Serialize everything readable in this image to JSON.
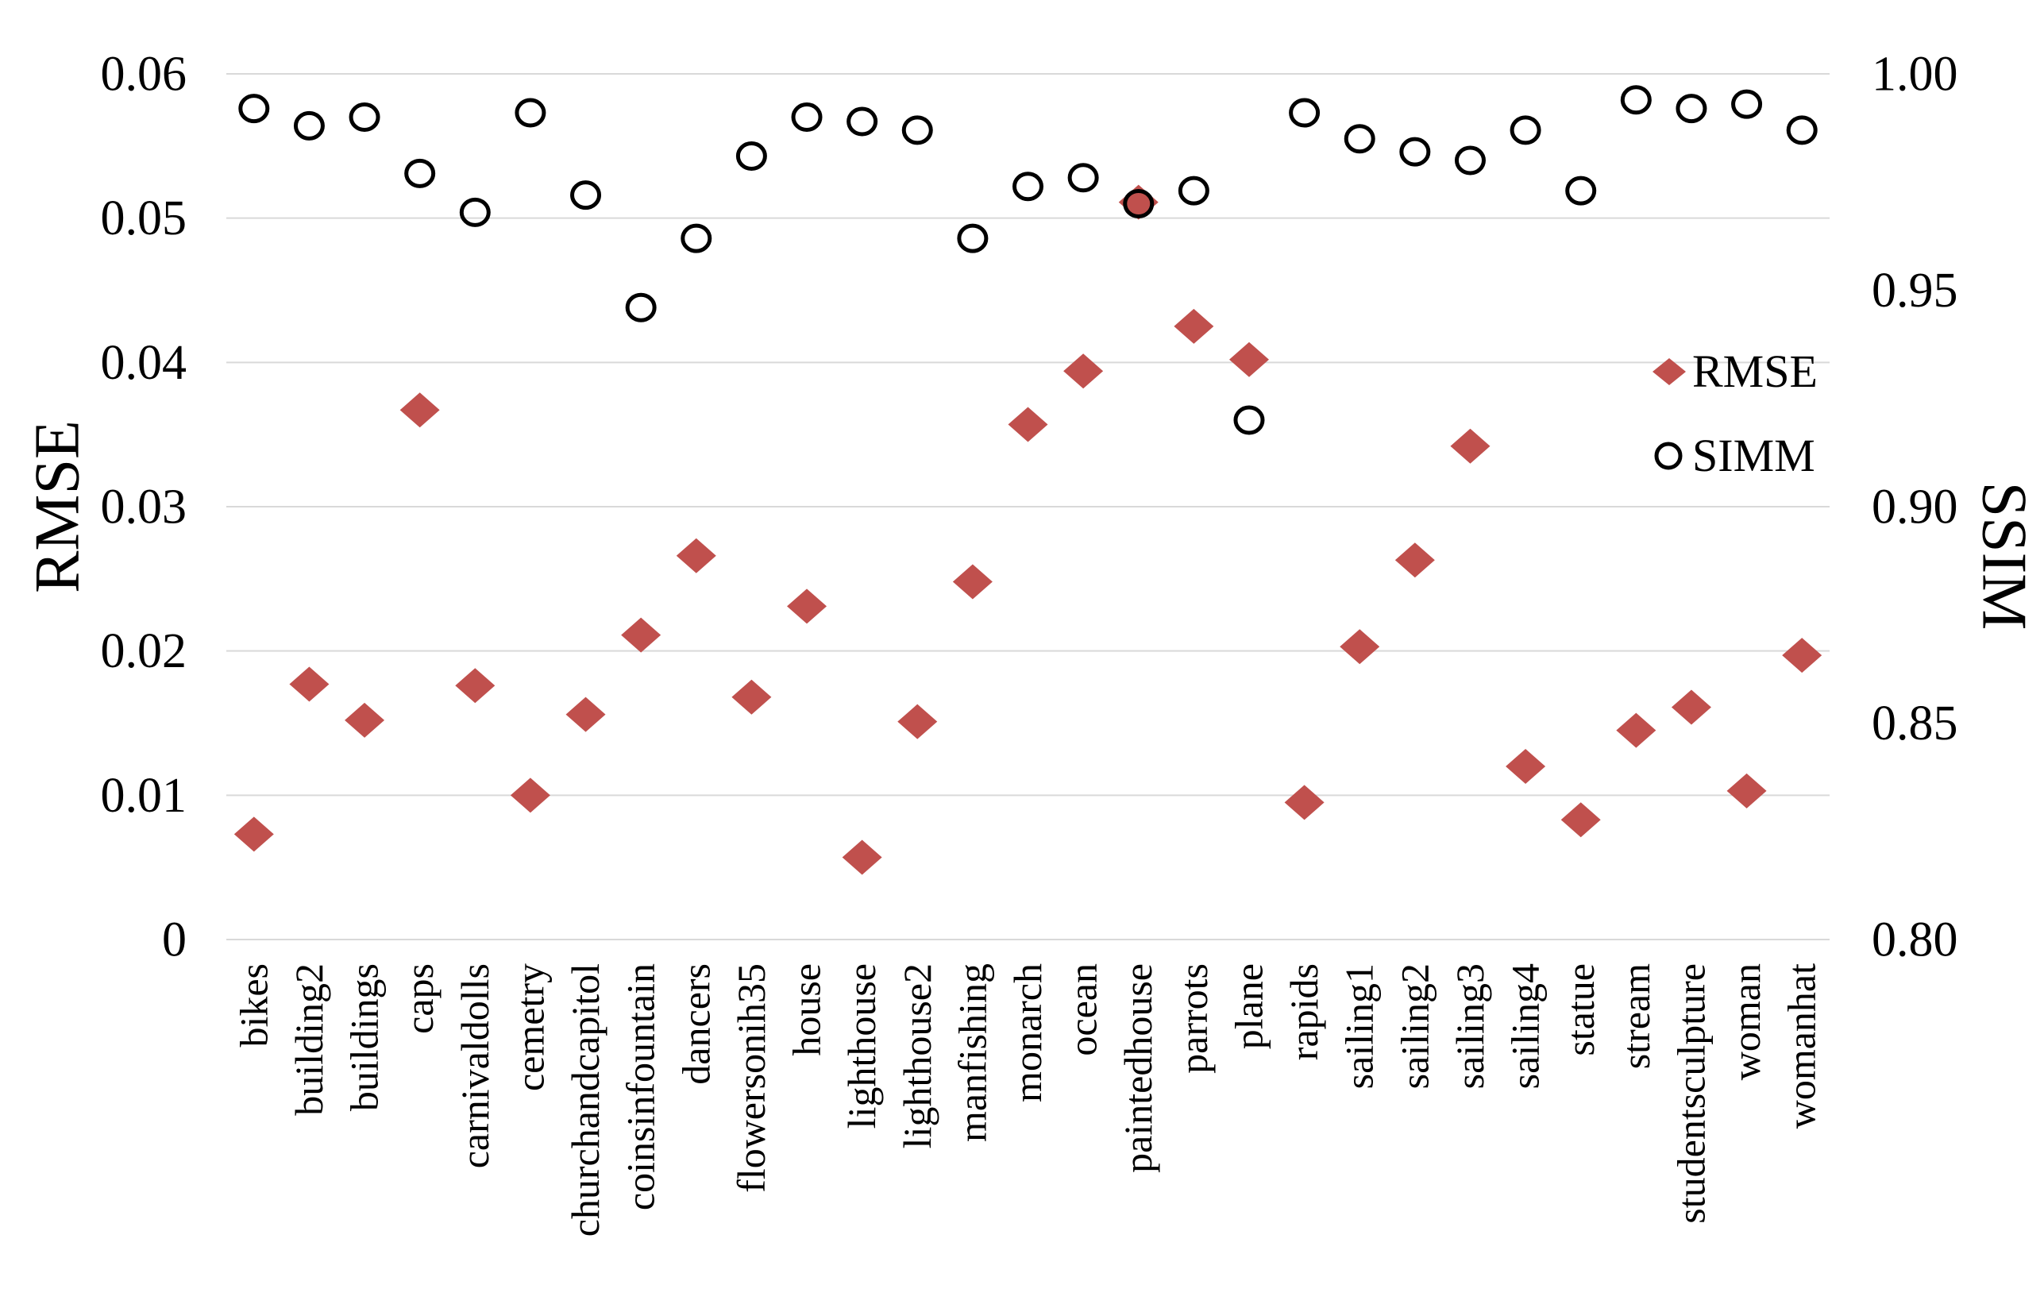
{
  "chart_data": {
    "type": "scatter",
    "title": "",
    "categories": [
      "bikes",
      "building2",
      "buildings",
      "caps",
      "carnivaldolls",
      "cemetry",
      "churchandcapitol",
      "coinsinfountain",
      "dancers",
      "flowersonih35",
      "house",
      "lighthouse",
      "lighthouse2",
      "manfishing",
      "monarch",
      "ocean",
      "paintedhouse",
      "parrots",
      "plane",
      "rapids",
      "sailing1",
      "sailing2",
      "sailing3",
      "sailing4",
      "statue",
      "stream",
      "studentsculpture",
      "woman",
      "womanhat"
    ],
    "series": [
      {
        "name": "RMSE",
        "marker": "filled-diamond",
        "color": "#C0504D",
        "axis": "left",
        "values": [
          0.0073,
          0.0177,
          0.0152,
          0.0367,
          0.0176,
          0.01,
          0.0156,
          0.0211,
          0.0266,
          0.0168,
          0.0231,
          0.0057,
          0.0151,
          0.0248,
          0.0357,
          0.0394,
          0.0511,
          0.0425,
          0.0402,
          0.0095,
          0.0203,
          0.0263,
          0.0342,
          0.012,
          0.0083,
          0.0145,
          0.0161,
          0.0103,
          0.0197
        ]
      },
      {
        "name": "SIMM",
        "marker": "open-circle",
        "color": "#000000",
        "axis": "right",
        "values": [
          0.992,
          0.988,
          0.99,
          0.977,
          0.968,
          0.991,
          0.972,
          0.946,
          0.962,
          0.981,
          0.99,
          0.989,
          0.987,
          0.962,
          0.974,
          0.976,
          0.97,
          0.973,
          0.92,
          0.991,
          0.985,
          0.982,
          0.98,
          0.987,
          0.973,
          0.994,
          0.992,
          0.993,
          0.987
        ]
      }
    ],
    "left_axis": {
      "label": "RMSE",
      "min": 0,
      "max": 0.06,
      "tick_labels": [
        "0.06",
        "0.05",
        "0.04",
        "0.03",
        "0.02",
        "0.01",
        "0"
      ]
    },
    "right_axis": {
      "label": "SSIM",
      "min": 0.8,
      "max": 1.0,
      "tick_labels": [
        "1.00",
        "0.95",
        "0.90",
        "0.85",
        "0.80"
      ]
    },
    "legend": {
      "position": "right-inside",
      "items": [
        {
          "label": "RMSE"
        },
        {
          "label": "SIMM"
        }
      ]
    },
    "grid": "horizontal",
    "gridline_color": "#D9D9D9",
    "background_color": "#FFFFFF"
  }
}
